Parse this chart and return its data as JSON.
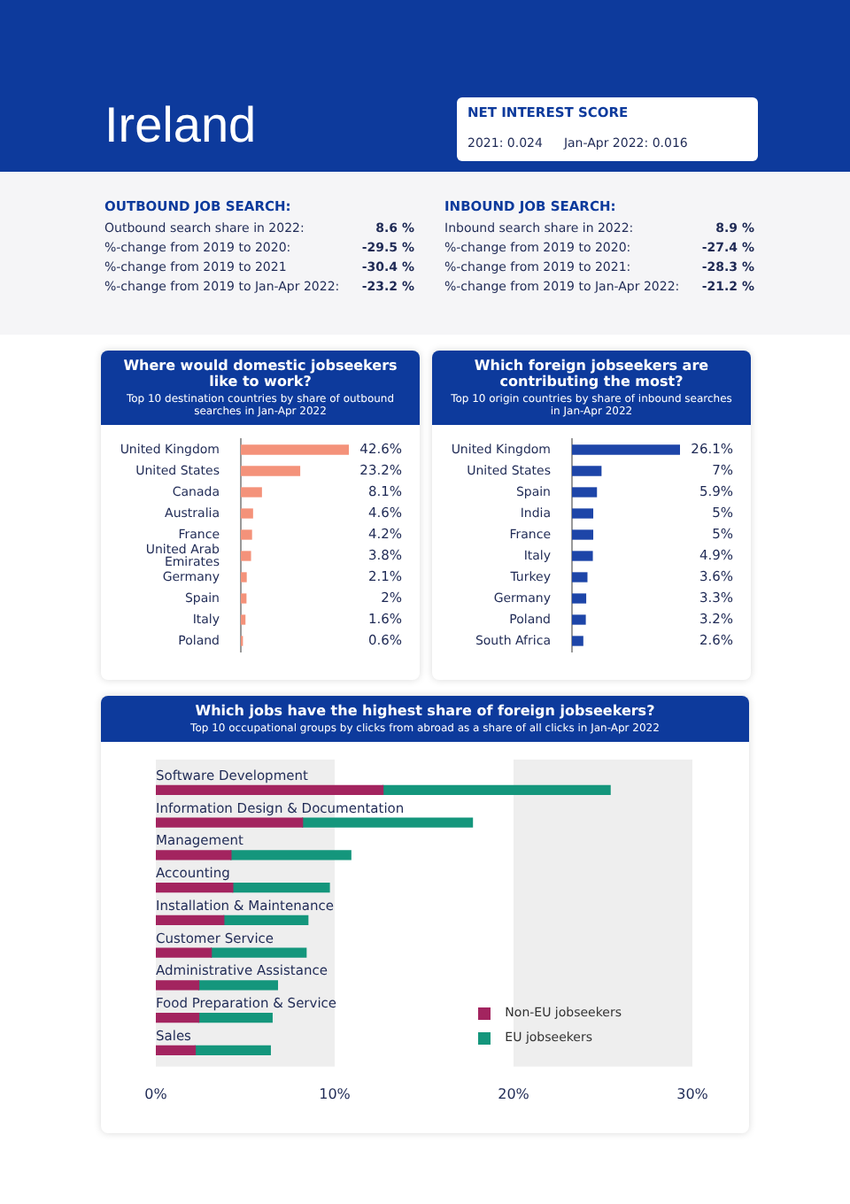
{
  "chart_data": [
    {
      "type": "other",
      "title": "Ireland",
      "subtitle": "NET INTEREST SCORE",
      "annotations": [
        "2021: 0.024",
        "Jan-Apr 2022: 0.016"
      ]
    },
    {
      "type": "other",
      "title": "OUTBOUND JOB SEARCH:",
      "annotations": [
        "Outbound search share in 2022:",
        "8.6 %",
        "%-change from 2019 to 2020:",
        "-29.5 %",
        "%-change from 2019 to 2021",
        "-30.4 %",
        "%-change from 2019 to Jan-Apr 2022:",
        "-23.2 %"
      ]
    },
    {
      "type": "other",
      "title": "INBOUND JOB SEARCH:",
      "annotations": [
        "Inbound search share in 2022:",
        "8.9 %",
        "%-change from 2019 to 2020:",
        "-27.4 %",
        "%-change from 2019 to 2021:",
        "-28.3 %",
        "%-change from 2019 to Jan-Apr 2022:",
        "-21.2 %"
      ]
    },
    {
      "type": "bar",
      "orientation": "horizontal",
      "title": "Where would domestic jobseekers like to work?",
      "subtitle": "Top 10 destination countries by share of outbound searches in Jan-Apr 2022",
      "categories": [
        "United Kingdom",
        "United States",
        "Canada",
        "Australia",
        "France",
        "United Arab Emirates",
        "Germany",
        "Spain",
        "Italy",
        "Poland"
      ],
      "values": [
        42.6,
        23.2,
        8.1,
        4.6,
        4.2,
        3.8,
        2.1,
        2,
        1.6,
        0.6
      ],
      "color": "#f4927a",
      "value_labels": [
        "42.6%",
        "23.2%",
        "8.1%",
        "4.6%",
        "4.2%",
        "3.8%",
        "2.1%",
        "2%",
        "1.6%",
        "0.6%"
      ]
    },
    {
      "type": "bar",
      "orientation": "horizontal",
      "title": "Which foreign jobseekers are contributing the most?",
      "subtitle": "Top 10 origin countries by share of inbound searches in Jan-Apr 2022",
      "categories": [
        "United Kingdom",
        "United States",
        "Spain",
        "India",
        "France",
        "Italy",
        "Turkey",
        "Germany",
        "Poland",
        "South Africa"
      ],
      "values": [
        26.1,
        7,
        5.9,
        5,
        5,
        4.9,
        3.6,
        3.3,
        3.2,
        2.6
      ],
      "color": "#1d45a8",
      "value_labels": [
        "26.1%",
        "7%",
        "5.9%",
        "5%",
        "5%",
        "4.9%",
        "3.6%",
        "3.3%",
        "3.2%",
        "2.6%"
      ]
    },
    {
      "type": "bar",
      "orientation": "horizontal",
      "stacked": true,
      "title": "Which jobs have the highest share of foreign jobseekers?",
      "subtitle": "Top 10 occupational groups by clicks from abroad as a share of all clicks in Jan-Apr 2022",
      "categories": [
        "Software Development",
        "Information Design & Documentation",
        "Management",
        "Accounting",
        "Installation & Maintenance",
        "Customer Service",
        "Administrative Assistance",
        "Food Preparation & Service",
        "Sales"
      ],
      "series": [
        {
          "name": "Non-EU jobseekers",
          "color": "#a3245f",
          "values": [
            12.7,
            8.2,
            4.2,
            4.3,
            3.8,
            3.1,
            2.4,
            2.4,
            2.2
          ]
        },
        {
          "name": "EU jobseekers",
          "color": "#14967c",
          "values": [
            12.7,
            9.5,
            6.7,
            5.4,
            4.7,
            5.3,
            4.4,
            4.1,
            4.2
          ]
        }
      ],
      "xlim": [
        0,
        30
      ],
      "xticks": [
        {
          "value": 0,
          "label": "0%"
        },
        {
          "value": 10,
          "label": "10%"
        },
        {
          "value": 20,
          "label": "20%"
        },
        {
          "value": 30,
          "label": "30%"
        }
      ],
      "bands": [
        {
          "axis": "x",
          "from": 0,
          "to": 10,
          "color": "#eeeeee"
        },
        {
          "axis": "x",
          "from": 20,
          "to": 30,
          "color": "#eeeeee"
        }
      ],
      "legend": "bottom right",
      "grid": false
    }
  ]
}
